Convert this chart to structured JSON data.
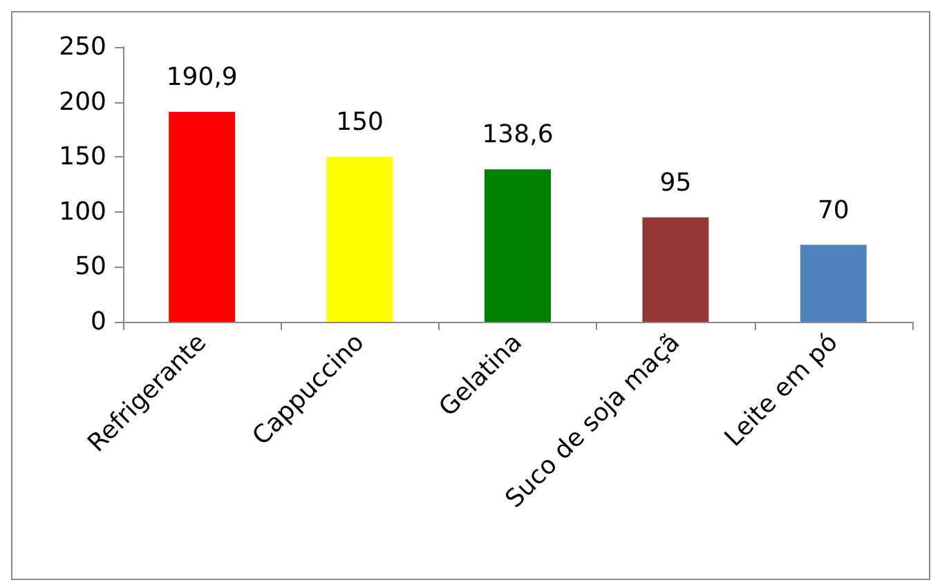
{
  "chart_data": {
    "type": "bar",
    "categories": [
      "Refrigerante",
      "Cappuccino",
      "Gelatina",
      "Suco de soja maçã",
      "Leite em pó"
    ],
    "values": [
      190.9,
      150,
      138.6,
      95,
      70
    ],
    "colors": [
      "#ff0000",
      "#ffff00",
      "#008000",
      "#953735",
      "#4f81bd"
    ],
    "value_labels": [
      "190,9",
      "150",
      "138,6",
      "95",
      "70"
    ],
    "ylim": [
      0,
      250
    ],
    "yticks": [
      0,
      50,
      100,
      150,
      200,
      250
    ],
    "grid": false
  }
}
